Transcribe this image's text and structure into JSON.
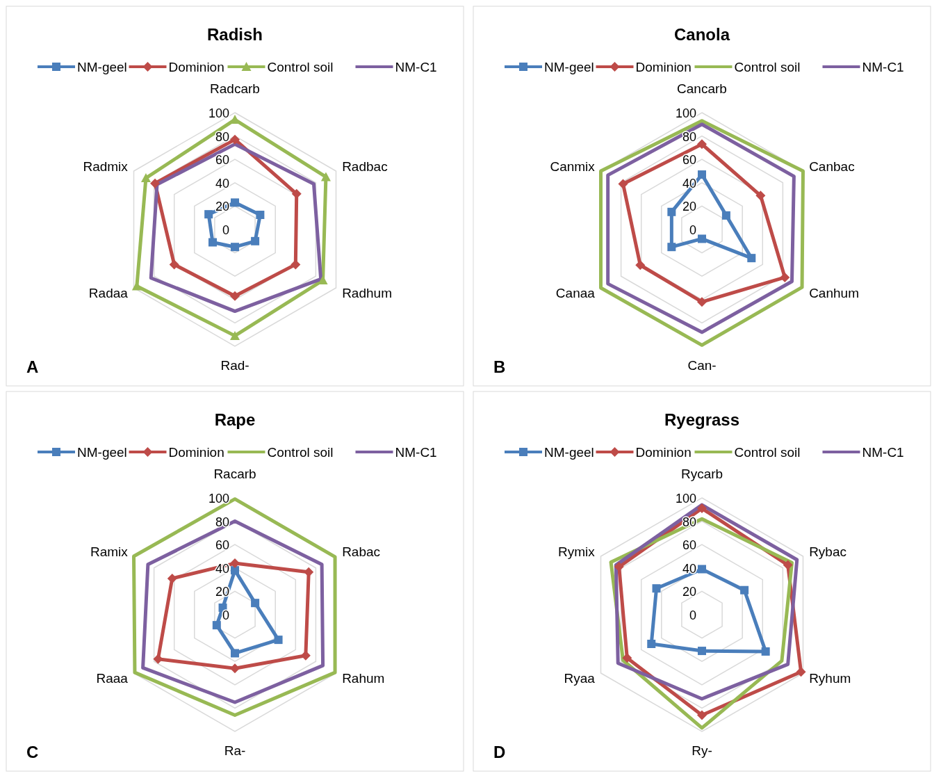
{
  "chart_data": [
    {
      "type": "radar",
      "title": "Radish",
      "categories": [
        "Radcarb",
        "Radbac",
        "Radhum",
        "Rad-",
        "Radaa",
        "Radmix"
      ],
      "ylim": [
        0,
        100
      ],
      "yticks": [
        0,
        20,
        40,
        60,
        80,
        100
      ],
      "grid": true,
      "legend": "top",
      "annotations": [
        "A"
      ],
      "series": [
        {
          "name": "NM-geel",
          "color": "#4a7ebb",
          "marker": "square",
          "values": [
            23,
            25,
            20,
            15,
            22,
            26
          ]
        },
        {
          "name": "Dominion",
          "color": "#be4b48",
          "marker": "diamond",
          "values": [
            77,
            61,
            60,
            57,
            60,
            79
          ]
        },
        {
          "name": "Control soil",
          "color": "#98b954",
          "marker": "triangle",
          "values": [
            94,
            90,
            87,
            91,
            97,
            88
          ]
        },
        {
          "name": "NM-C1",
          "color": "#7d60a0",
          "marker": "none",
          "values": [
            73,
            78,
            85,
            70,
            83,
            77
          ]
        }
      ]
    },
    {
      "type": "radar",
      "title": "Canola",
      "categories": [
        "Cancarb",
        "Canbac",
        "Canhum",
        "Can-",
        "Canaa",
        "Canmix"
      ],
      "ylim": [
        0,
        100
      ],
      "yticks": [
        0,
        20,
        40,
        60,
        80,
        100
      ],
      "grid": true,
      "legend": "top",
      "annotations": [
        "B"
      ],
      "series": [
        {
          "name": "NM-geel",
          "color": "#4a7ebb",
          "marker": "square",
          "values": [
            47,
            24,
            49,
            8,
            30,
            30
          ]
        },
        {
          "name": "Dominion",
          "color": "#be4b48",
          "marker": "diamond",
          "values": [
            73,
            58,
            82,
            62,
            61,
            78
          ]
        },
        {
          "name": "Control soil",
          "color": "#98b954",
          "marker": "none",
          "values": [
            93,
            100,
            99,
            99,
            100,
            100
          ]
        },
        {
          "name": "NM-C1",
          "color": "#7d60a0",
          "marker": "none",
          "values": [
            90,
            91,
            89,
            88,
            93,
            93
          ]
        }
      ]
    },
    {
      "type": "radar",
      "title": "Rape",
      "categories": [
        "Racarb",
        "Rabac",
        "Rahum",
        "Ra-",
        "Raaa",
        "Ramix"
      ],
      "ylim": [
        0,
        100
      ],
      "yticks": [
        0,
        20,
        40,
        60,
        80,
        100
      ],
      "grid": true,
      "legend": "top",
      "annotations": [
        "C"
      ],
      "series": [
        {
          "name": "NM-geel",
          "color": "#4a7ebb",
          "marker": "square",
          "values": [
            38,
            20,
            43,
            33,
            18,
            12
          ]
        },
        {
          "name": "Dominion",
          "color": "#be4b48",
          "marker": "diamond",
          "values": [
            44,
            73,
            70,
            46,
            76,
            62
          ]
        },
        {
          "name": "Control soil",
          "color": "#98b954",
          "marker": "none",
          "values": [
            99,
            99,
            99,
            86,
            99,
            100
          ]
        },
        {
          "name": "NM-C1",
          "color": "#7d60a0",
          "marker": "none",
          "values": [
            80,
            86,
            87,
            75,
            91,
            86
          ]
        }
      ]
    },
    {
      "type": "radar",
      "title": "Ryegrass",
      "categories": [
        "Rycarb",
        "Rybac",
        "Ryhum",
        "Ry-",
        "Ryaa",
        "Rymix"
      ],
      "ylim": [
        0,
        100
      ],
      "yticks": [
        0,
        20,
        40,
        60,
        80,
        100
      ],
      "grid": true,
      "legend": "top",
      "annotations": [
        "D"
      ],
      "series": [
        {
          "name": "NM-geel",
          "color": "#4a7ebb",
          "marker": "square",
          "values": [
            39,
            42,
            63,
            31,
            50,
            45
          ]
        },
        {
          "name": "Dominion",
          "color": "#be4b48",
          "marker": "diamond",
          "values": [
            91,
            85,
            98,
            86,
            74,
            82
          ]
        },
        {
          "name": "Control soil",
          "color": "#98b954",
          "marker": "none",
          "values": [
            82,
            89,
            79,
            97,
            78,
            90
          ]
        },
        {
          "name": "NM-C1",
          "color": "#7d60a0",
          "marker": "none",
          "values": [
            94,
            94,
            85,
            72,
            83,
            85
          ]
        }
      ]
    }
  ]
}
